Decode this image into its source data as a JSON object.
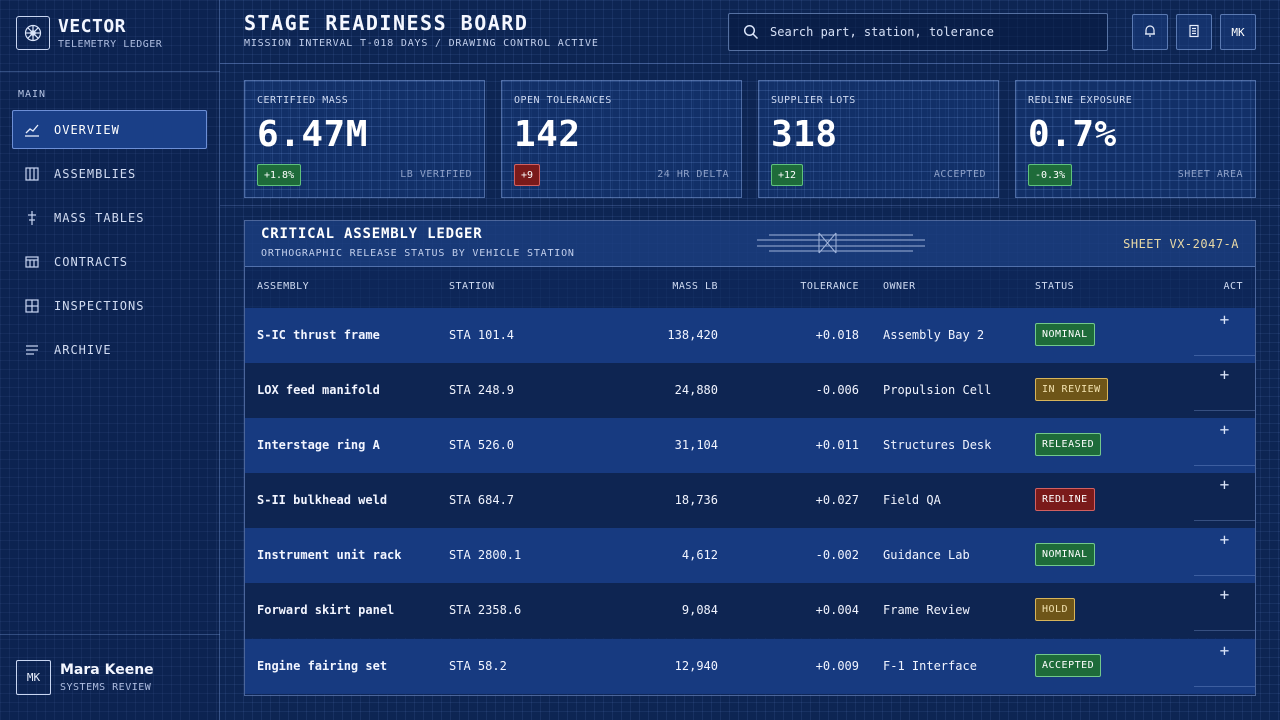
{
  "brand": {
    "title": "VECTOR",
    "subtitle": "TELEMETRY LEDGER"
  },
  "sidebar": {
    "section_label": "MAIN",
    "items": [
      {
        "label": "OVERVIEW",
        "icon": "chart-line-icon",
        "active": true
      },
      {
        "label": "ASSEMBLIES",
        "icon": "columns-icon",
        "active": false
      },
      {
        "label": "MASS TABLES",
        "icon": "scale-icon",
        "active": false
      },
      {
        "label": "CONTRACTS",
        "icon": "contract-icon",
        "active": false
      },
      {
        "label": "INSPECTIONS",
        "icon": "grid-icon",
        "active": false
      },
      {
        "label": "ARCHIVE",
        "icon": "list-icon",
        "active": false
      }
    ]
  },
  "profile": {
    "initials": "MK",
    "name": "Mara Keene",
    "role": "SYSTEMS REVIEW"
  },
  "header": {
    "title": "STAGE READINESS BOARD",
    "subtitle": "MISSION INTERVAL T-018 DAYS / DRAWING CONTROL ACTIVE",
    "search_placeholder": "Search part, station, tolerance",
    "avatar_initials": "MK"
  },
  "kpis": [
    {
      "label": "CERTIFIED MASS",
      "value": "6.47M",
      "delta": "+1.8%",
      "delta_tone": "pos",
      "meta": "LB VERIFIED"
    },
    {
      "label": "OPEN TOLERANCES",
      "value": "142",
      "delta": "+9",
      "delta_tone": "neg",
      "meta": "24 HR DELTA"
    },
    {
      "label": "SUPPLIER LOTS",
      "value": "318",
      "delta": "+12",
      "delta_tone": "pos",
      "meta": "ACCEPTED"
    },
    {
      "label": "REDLINE EXPOSURE",
      "value": "0.7%",
      "delta": "-0.3%",
      "delta_tone": "pos",
      "meta": "SHEET AREA"
    }
  ],
  "ledger": {
    "title": "CRITICAL ASSEMBLY LEDGER",
    "subtitle": "ORTHOGRAPHIC RELEASE STATUS BY VEHICLE STATION",
    "sheet": "SHEET VX-2047-A",
    "columns": {
      "assembly": "ASSEMBLY",
      "station": "STATION",
      "mass": "MASS LB",
      "tolerance": "TOLERANCE",
      "owner": "OWNER",
      "status": "STATUS",
      "act": "ACT"
    },
    "act_symbol": "+",
    "rows": [
      {
        "assembly": "S-IC thrust frame",
        "station": "STA 101.4",
        "mass": "138,420",
        "tolerance": "+0.018",
        "owner": "Assembly Bay 2",
        "status": "NOMINAL",
        "status_tone": "green"
      },
      {
        "assembly": "LOX feed manifold",
        "station": "STA 248.9",
        "mass": "24,880",
        "tolerance": "-0.006",
        "owner": "Propulsion Cell",
        "status": "IN REVIEW",
        "status_tone": "amber"
      },
      {
        "assembly": "Interstage ring A",
        "station": "STA 526.0",
        "mass": "31,104",
        "tolerance": "+0.011",
        "owner": "Structures Desk",
        "status": "RELEASED",
        "status_tone": "green"
      },
      {
        "assembly": "S-II bulkhead weld",
        "station": "STA 684.7",
        "mass": "18,736",
        "tolerance": "+0.027",
        "owner": "Field QA",
        "status": "REDLINE",
        "status_tone": "red"
      },
      {
        "assembly": "Instrument unit rack",
        "station": "STA 2800.1",
        "mass": "4,612",
        "tolerance": "-0.002",
        "owner": "Guidance Lab",
        "status": "NOMINAL",
        "status_tone": "green"
      },
      {
        "assembly": "Forward skirt panel",
        "station": "STA 2358.6",
        "mass": "9,084",
        "tolerance": "+0.004",
        "owner": "Frame Review",
        "status": "HOLD",
        "status_tone": "amber"
      },
      {
        "assembly": "Engine fairing set",
        "station": "STA 58.2",
        "mass": "12,940",
        "tolerance": "+0.009",
        "owner": "F-1 Interface",
        "status": "ACCEPTED",
        "status_tone": "green"
      }
    ]
  }
}
